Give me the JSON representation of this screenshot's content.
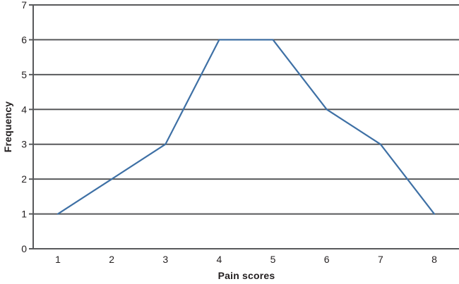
{
  "chart_data": {
    "type": "line",
    "title": "",
    "x": [
      1,
      2,
      3,
      4,
      5,
      6,
      7,
      8
    ],
    "values": [
      1,
      2,
      3,
      6,
      6,
      4,
      3,
      1
    ],
    "xlabel": "Pain scores",
    "ylabel": "Frequency",
    "xticks": [
      1,
      2,
      3,
      4,
      5,
      6,
      7,
      8
    ],
    "yticks": [
      0,
      1,
      2,
      3,
      4,
      5,
      6,
      7
    ],
    "ylim": [
      0,
      7
    ],
    "grid": "horizontal",
    "legend": "none",
    "markers": "none",
    "colors": {
      "line": "#3e70a5",
      "grid": "#58595b",
      "axis": "#58595b",
      "text": "#231f20",
      "background": "#ffffff"
    }
  }
}
